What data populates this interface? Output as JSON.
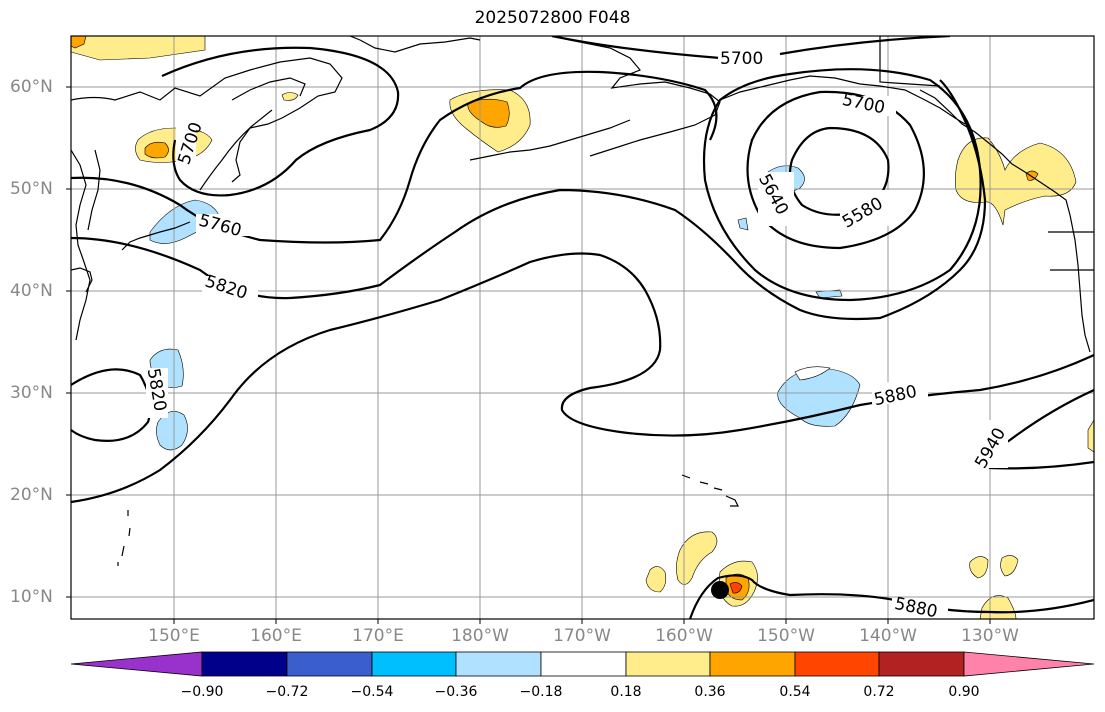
{
  "title": "2025072800 F048",
  "latitude_labels": [
    "60°N",
    "50°N",
    "40°N",
    "30°N",
    "20°N",
    "10°N"
  ],
  "longitude_labels": [
    "150°E",
    "160°E",
    "170°E",
    "180°W",
    "170°W",
    "160°W",
    "150°W",
    "140°W",
    "130°W"
  ],
  "contour_labels": [
    "5700",
    "5700",
    "5700",
    "5760",
    "5820",
    "5820",
    "5640",
    "5580",
    "5880",
    "5880",
    "5940"
  ],
  "colorbar": {
    "tick_labels": [
      "−0.90",
      "−0.72",
      "−0.54",
      "−0.36",
      "−0.18",
      "0.18",
      "0.36",
      "0.54",
      "0.72",
      "0.90"
    ],
    "colors": [
      "#9932cc",
      "#00008b",
      "#3a5fcd",
      "#00bfff",
      "#b0e2ff",
      "#ffffff",
      "#ffec8b",
      "#ffa500",
      "#ff4500",
      "#b22222",
      "#ff82ab"
    ]
  },
  "colors": {
    "coastline": "#000000",
    "grid": "#999999",
    "contour": "#000000",
    "marker": "#000000"
  }
}
